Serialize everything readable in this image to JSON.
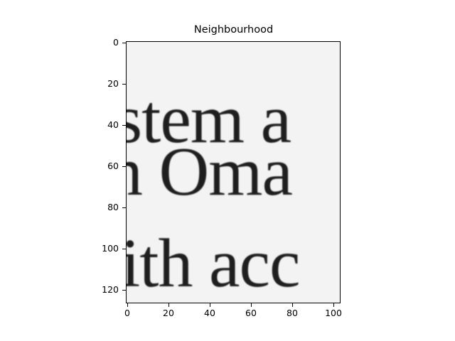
{
  "figure": {
    "title": "Neighbourhood"
  },
  "image": {
    "subject": "grayscale crop of printed serif text",
    "lines": [
      "stem a",
      "n Oma",
      "ith acc"
    ],
    "ink_color": "#1e1e1e",
    "paper_color": "#f3f3f3"
  },
  "axes": {
    "y_ticks": [
      "0",
      "20",
      "40",
      "60",
      "80",
      "100",
      "120"
    ],
    "x_ticks": [
      "0",
      "20",
      "40",
      "60",
      "80",
      "100"
    ]
  }
}
